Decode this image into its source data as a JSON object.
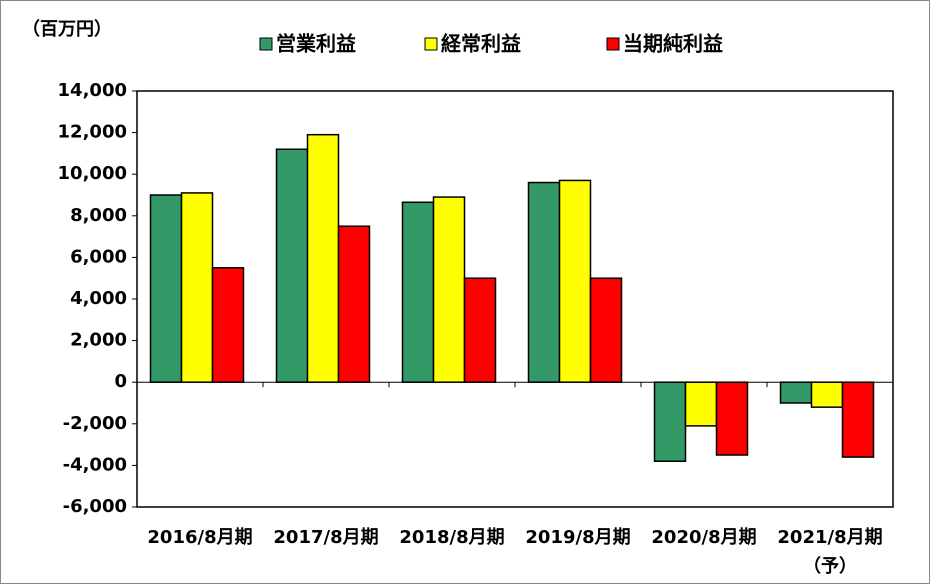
{
  "chart_data": {
    "type": "bar",
    "unit_label": "（百万円）",
    "categories": [
      [
        "2016/8月期"
      ],
      [
        "2017/8月期"
      ],
      [
        "2018/8月期"
      ],
      [
        "2019/8月期"
      ],
      [
        "2020/8月期"
      ],
      [
        "2021/8月期",
        "（予）"
      ]
    ],
    "series": [
      {
        "name": "営業利益",
        "color": "#339966",
        "values": [
          9000,
          11200,
          8650,
          9600,
          -3800,
          -1000
        ]
      },
      {
        "name": "経常利益",
        "color": "#ffff00",
        "values": [
          9100,
          11900,
          8900,
          9700,
          -2100,
          -1200
        ]
      },
      {
        "name": "当期純利益",
        "color": "#ff0000",
        "values": [
          5500,
          7500,
          5000,
          5000,
          -3500,
          -3600
        ]
      }
    ],
    "ylim": [
      -6000,
      14000
    ],
    "yticks": [
      {
        "value": -6000,
        "label": "-6,000"
      },
      {
        "value": -4000,
        "label": "-4,000"
      },
      {
        "value": -2000,
        "label": "-2,000"
      },
      0,
      {
        "value": 2000,
        "label": "2,000"
      },
      {
        "value": 4000,
        "label": "4,000"
      },
      {
        "value": 6000,
        "label": "6,000"
      },
      {
        "value": 8000,
        "label": "8,000"
      },
      {
        "value": 10000,
        "label": "10,000"
      },
      {
        "value": 12000,
        "label": "12,000"
      },
      {
        "value": 14000,
        "label": "14,000"
      }
    ],
    "legend": "top",
    "grid": false
  }
}
